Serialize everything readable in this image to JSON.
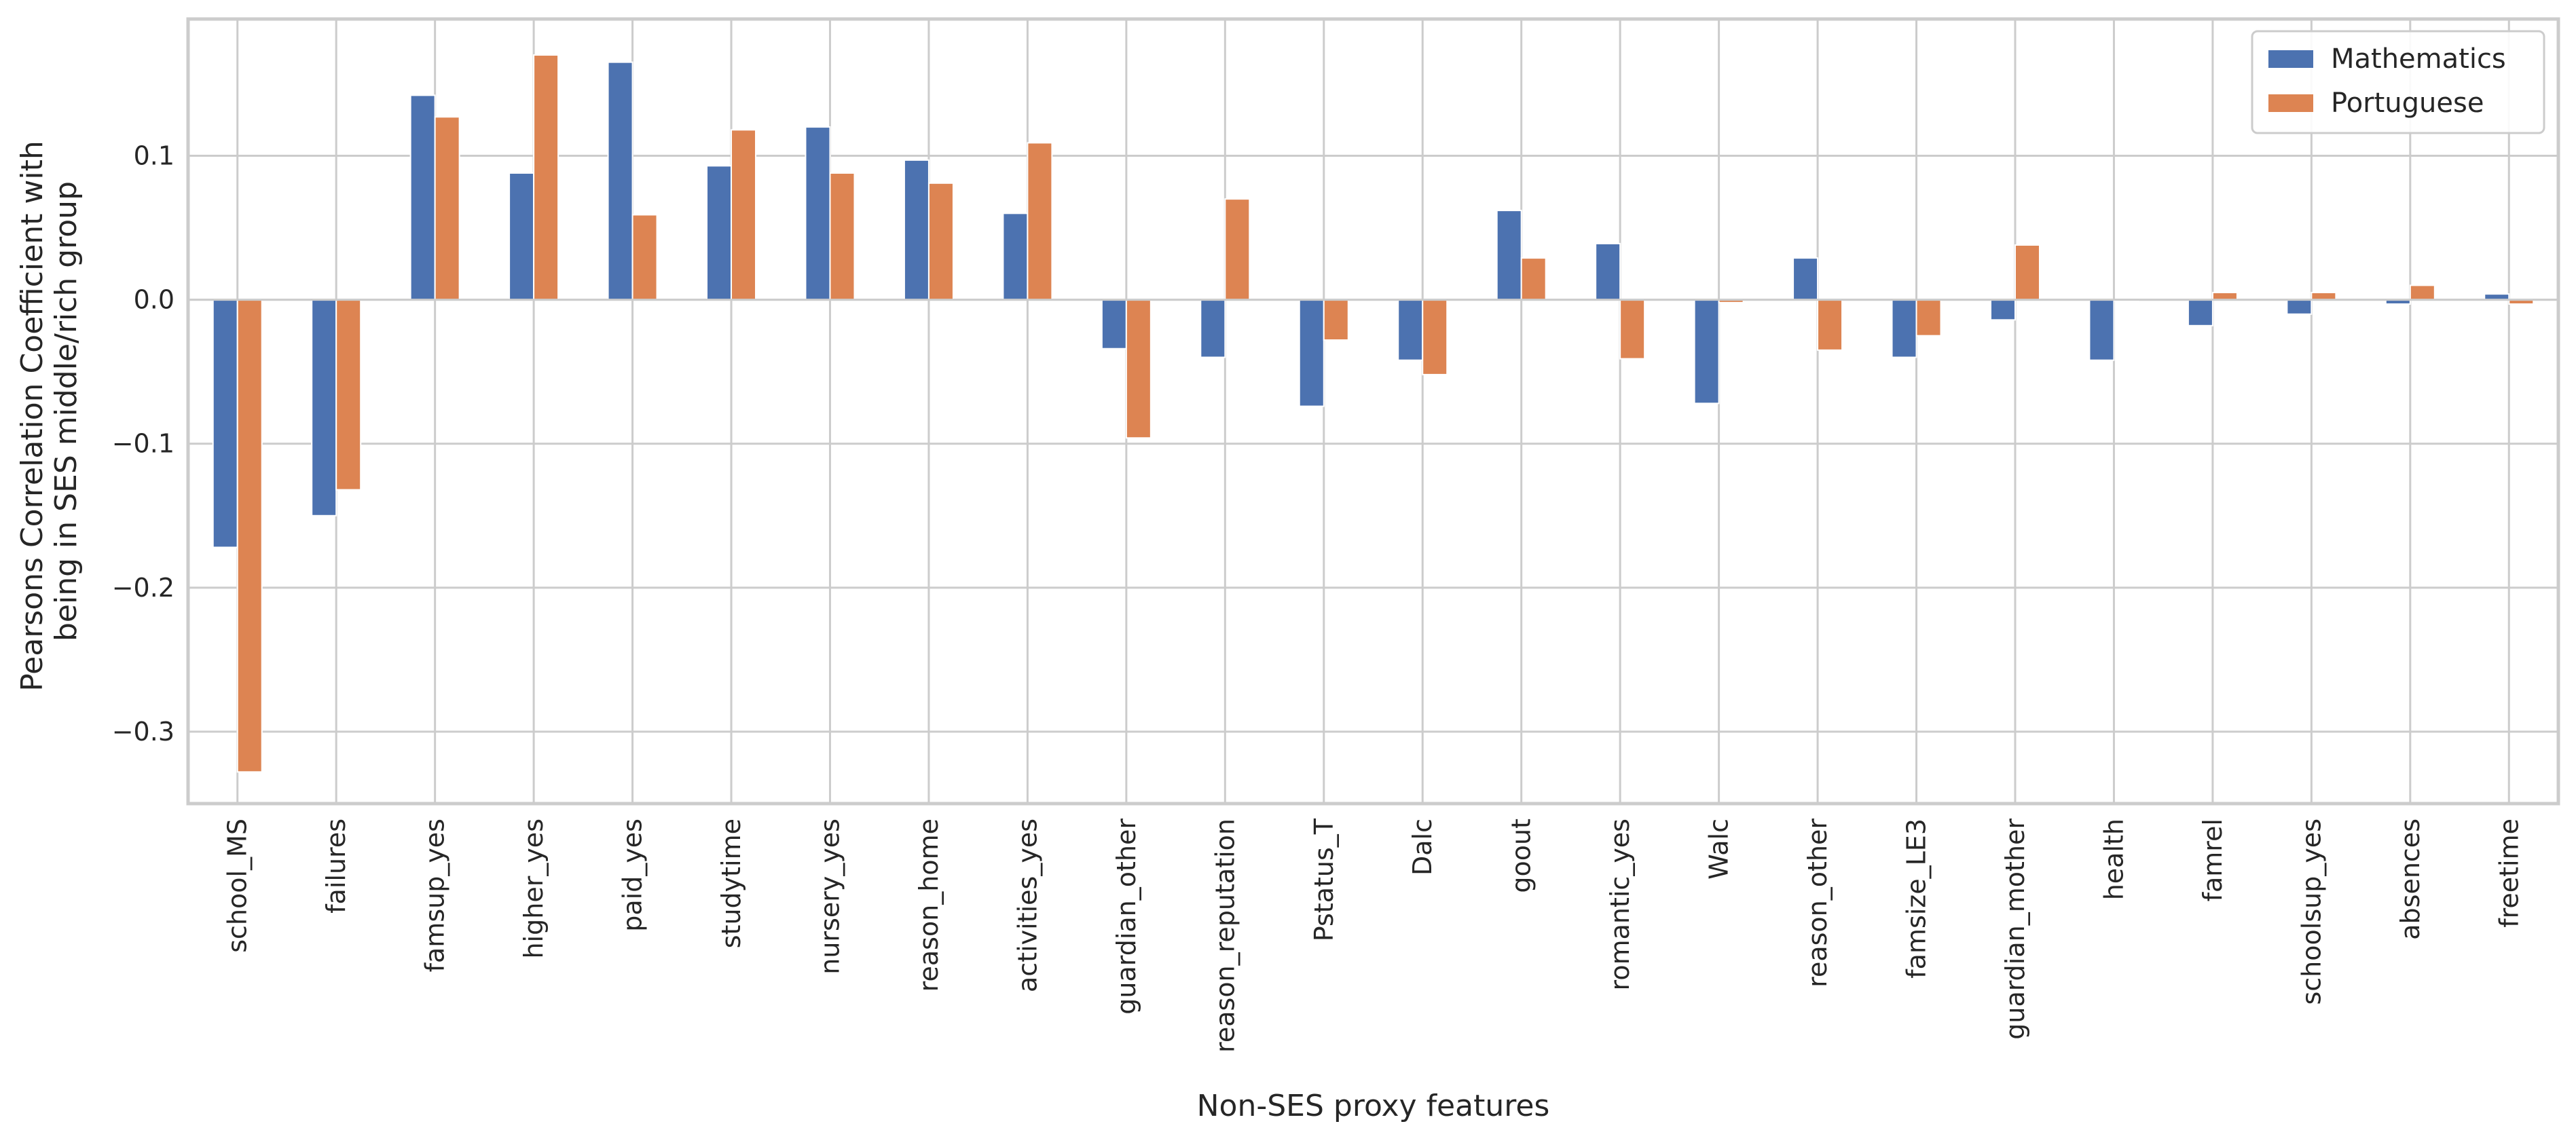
{
  "chart_data": {
    "type": "bar",
    "title": "",
    "xlabel": "Non-SES proxy features",
    "ylabel_lines": [
      "Pearsons Correlation Coefficient with",
      "being in SES middle/rich group"
    ],
    "ylim": [
      -0.35,
      0.195
    ],
    "yticks": [
      -0.3,
      -0.2,
      -0.1,
      0.0,
      0.1
    ],
    "ytick_labels": [
      "−0.3",
      "−0.2",
      "−0.1",
      "0.0",
      "0.1"
    ],
    "grid": true,
    "legend_position": "top-right",
    "categories": [
      "school_MS",
      "failures",
      "famsup_yes",
      "higher_yes",
      "paid_yes",
      "studytime",
      "nursery_yes",
      "reason_home",
      "activities_yes",
      "guardian_other",
      "reason_reputation",
      "Pstatus_T",
      "Dalc",
      "goout",
      "romantic_yes",
      "Walc",
      "reason_other",
      "famsize_LE3",
      "guardian_mother",
      "health",
      "famrel",
      "schoolsup_yes",
      "absences",
      "freetime"
    ],
    "series": [
      {
        "name": "Mathematics",
        "color": "#4c72b0",
        "values": [
          -0.172,
          -0.15,
          0.142,
          0.088,
          0.165,
          0.093,
          0.12,
          0.097,
          0.06,
          -0.034,
          -0.04,
          -0.074,
          -0.042,
          0.062,
          0.039,
          -0.072,
          0.029,
          -0.04,
          -0.014,
          -0.042,
          -0.018,
          -0.01,
          -0.003,
          0.004
        ]
      },
      {
        "name": "Portuguese",
        "color": "#dd8452",
        "values": [
          -0.328,
          -0.132,
          0.127,
          0.17,
          0.059,
          0.118,
          0.088,
          0.081,
          0.109,
          -0.096,
          0.07,
          -0.028,
          -0.052,
          0.029,
          -0.041,
          -0.002,
          -0.035,
          -0.025,
          0.038,
          0.0,
          0.005,
          0.005,
          0.01,
          -0.003
        ]
      }
    ]
  }
}
